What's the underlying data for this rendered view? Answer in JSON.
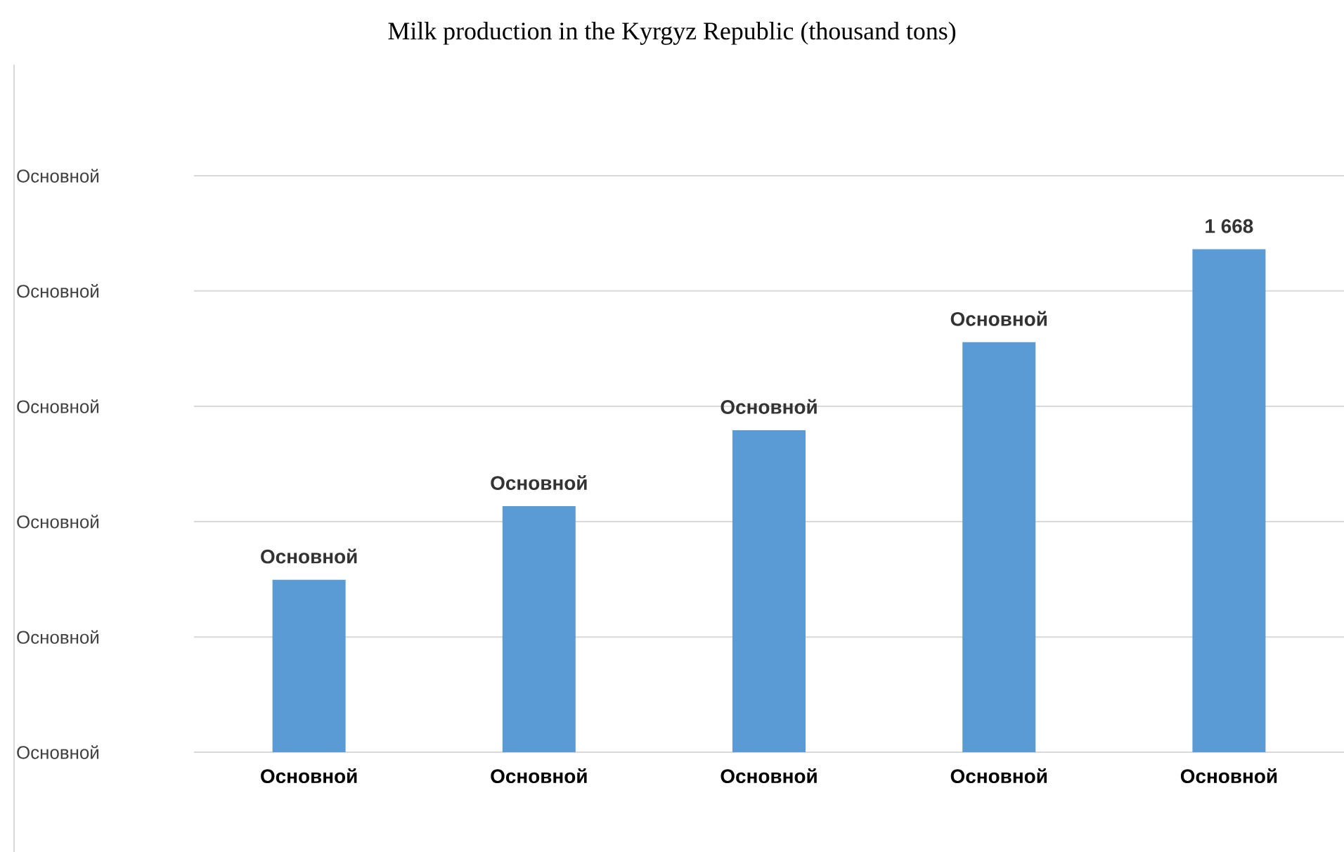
{
  "chart_data": {
    "type": "bar",
    "title": "Milk production in the Kyrgyz Republic (thousand tons)",
    "categories": [
      "Основной",
      "Основной",
      "Основной",
      "Основной",
      "Основной"
    ],
    "values": [
      572,
      816,
      1068,
      1360,
      1668
    ],
    "value_labels": [
      "Основной",
      "Основной",
      "Основной",
      "Основной",
      "1 668"
    ],
    "color": "#5b9bd5",
    "ylim": [
      0,
      1912
    ],
    "yticks": [
      {
        "value": 0,
        "label": null
      },
      {
        "value": 382,
        "label": null
      },
      {
        "value": 765,
        "label": null
      },
      {
        "value": 1147,
        "label": null
      },
      {
        "value": 1530,
        "label": null
      },
      {
        "value": 1912,
        "label": null
      }
    ],
    "annotations": [
      "Основной",
      "Основной",
      "Основной",
      "Основной",
      "Основной",
      "Основной"
    ],
    "grid": "y"
  }
}
